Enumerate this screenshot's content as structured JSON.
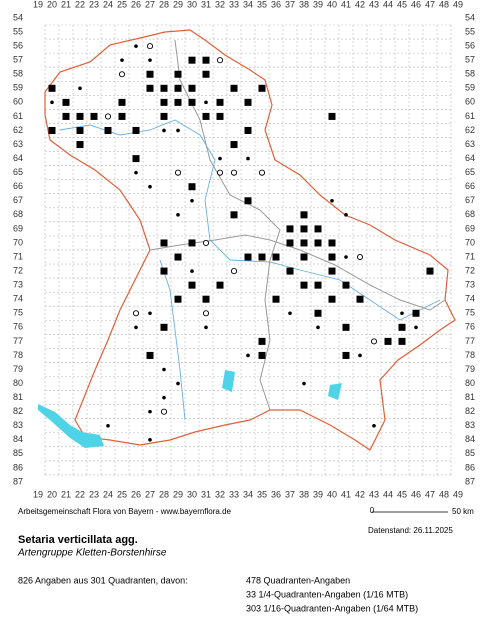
{
  "grid": {
    "columns": [
      19,
      20,
      21,
      22,
      23,
      24,
      25,
      26,
      27,
      28,
      29,
      30,
      31,
      32,
      33,
      34,
      35,
      36,
      37,
      38,
      39,
      40,
      41,
      42,
      43,
      44,
      45,
      46,
      47,
      48,
      49
    ],
    "rows": [
      54,
      55,
      56,
      57,
      58,
      59,
      60,
      61,
      62,
      63,
      64,
      65,
      66,
      67,
      68,
      69,
      70,
      71,
      72,
      73,
      74,
      75,
      76,
      77,
      78,
      79,
      80,
      81,
      82,
      83,
      84,
      85,
      86,
      87
    ]
  },
  "occurrences": {
    "squares": [
      [
        20,
        59
      ],
      [
        21,
        60
      ],
      [
        21,
        61
      ],
      [
        22,
        61
      ],
      [
        20,
        62
      ],
      [
        22,
        62
      ],
      [
        23,
        61
      ],
      [
        24,
        62
      ],
      [
        25,
        60
      ],
      [
        25,
        61
      ],
      [
        26,
        62
      ],
      [
        27,
        58
      ],
      [
        27,
        59
      ],
      [
        28,
        59
      ],
      [
        28,
        60
      ],
      [
        28,
        61
      ],
      [
        29,
        59
      ],
      [
        29,
        60
      ],
      [
        30,
        60
      ],
      [
        30,
        59
      ],
      [
        31,
        58
      ],
      [
        31,
        61
      ],
      [
        32,
        60
      ],
      [
        32,
        61
      ],
      [
        33,
        59
      ],
      [
        33,
        63
      ],
      [
        34,
        60
      ],
      [
        35,
        59
      ],
      [
        34,
        62
      ],
      [
        30,
        66
      ],
      [
        28,
        70
      ],
      [
        29,
        71
      ],
      [
        30,
        70
      ],
      [
        28,
        72
      ],
      [
        29,
        74
      ],
      [
        30,
        73
      ],
      [
        31,
        74
      ],
      [
        32,
        73
      ],
      [
        34,
        71
      ],
      [
        35,
        71
      ],
      [
        36,
        71
      ],
      [
        37,
        70
      ],
      [
        37,
        69
      ],
      [
        38,
        68
      ],
      [
        38,
        69
      ],
      [
        38,
        70
      ],
      [
        39,
        69
      ],
      [
        39,
        70
      ],
      [
        40,
        70
      ],
      [
        37,
        72
      ],
      [
        38,
        73
      ],
      [
        39,
        73
      ],
      [
        40,
        72
      ],
      [
        41,
        73
      ],
      [
        39,
        75
      ],
      [
        40,
        74
      ],
      [
        42,
        74
      ],
      [
        41,
        76
      ],
      [
        41,
        78
      ],
      [
        45,
        76
      ],
      [
        45,
        77
      ],
      [
        46,
        75
      ],
      [
        47,
        72
      ],
      [
        44,
        77
      ],
      [
        35,
        78
      ],
      [
        35,
        77
      ],
      [
        28,
        76
      ],
      [
        27,
        78
      ],
      [
        22,
        63
      ],
      [
        26,
        64
      ],
      [
        30,
        57
      ],
      [
        29,
        58
      ],
      [
        31,
        57
      ],
      [
        40,
        61
      ],
      [
        34,
        67
      ],
      [
        33,
        68
      ],
      [
        38,
        71
      ],
      [
        40,
        71
      ],
      [
        36,
        74
      ]
    ],
    "dots": [
      [
        20,
        60
      ],
      [
        22,
        59
      ],
      [
        26,
        56
      ],
      [
        27,
        57
      ],
      [
        28,
        62
      ],
      [
        29,
        62
      ],
      [
        31,
        60
      ],
      [
        32,
        64
      ],
      [
        34,
        64
      ],
      [
        26,
        65
      ],
      [
        27,
        66
      ],
      [
        29,
        68
      ],
      [
        30,
        67
      ],
      [
        30,
        72
      ],
      [
        27,
        75
      ],
      [
        26,
        76
      ],
      [
        28,
        79
      ],
      [
        29,
        80
      ],
      [
        27,
        82
      ],
      [
        27,
        84
      ],
      [
        24,
        83
      ],
      [
        28,
        81
      ],
      [
        34,
        78
      ],
      [
        37,
        75
      ],
      [
        39,
        76
      ],
      [
        42,
        78
      ],
      [
        45,
        75
      ],
      [
        46,
        76
      ],
      [
        43,
        83
      ],
      [
        38,
        80
      ],
      [
        40,
        67
      ],
      [
        41,
        71
      ],
      [
        31,
        76
      ],
      [
        41,
        68
      ],
      [
        25,
        57
      ]
    ],
    "circles": [
      [
        25,
        58
      ],
      [
        27,
        56
      ],
      [
        32,
        57
      ],
      [
        32,
        65
      ],
      [
        33,
        65
      ],
      [
        35,
        65
      ],
      [
        29,
        65
      ],
      [
        31,
        70
      ],
      [
        33,
        72
      ],
      [
        31,
        75
      ],
      [
        42,
        71
      ],
      [
        43,
        77
      ],
      [
        24,
        61
      ],
      [
        28,
        82
      ],
      [
        26,
        75
      ]
    ]
  },
  "scale": {
    "start": "0",
    "end": "50 km"
  },
  "footer": {
    "credit": "Arbeitsgemeinschaft Flora von Bayern - www.bayernflora.de",
    "date": "Datenstand: 26.11.2025",
    "title": "Setaria verticillata agg.",
    "subtitle": "Artengruppe Kletten-Borstenhirse",
    "summary": "826 Angaben aus 301 Quadranten, davon:",
    "counts": [
      "478 Quadranten-Angaben",
      "33 1/4-Quadranten-Angaben (1/16 MTB)",
      "303 1/16-Quadranten-Angaben (1/64 MTB)"
    ]
  }
}
